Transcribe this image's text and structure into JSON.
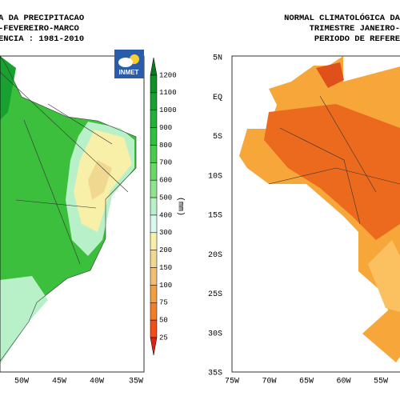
{
  "left_map": {
    "title_lines": [
      "A DA PRECIPITACAO",
      "-FEVEREIRO-MARCO",
      "ENCIA : 1981-2010"
    ],
    "logo": "INMET",
    "x_labels": [
      "50W",
      "45W",
      "40W",
      "35W"
    ],
    "colorbar": {
      "labels": [
        "1200",
        "1100",
        "1000",
        "900",
        "800",
        "700",
        "600",
        "500",
        "400",
        "300",
        "200",
        "150",
        "100",
        "75",
        "50",
        "25"
      ],
      "unit": "(mm)",
      "colors": [
        "#0a7a1e",
        "#109028",
        "#18a030",
        "#22b038",
        "#30c040",
        "#48cc50",
        "#68d868",
        "#90e490",
        "#b8f0c8",
        "#d8f8f0",
        "#f8f0a8",
        "#f0d890",
        "#f0c070",
        "#f0a040",
        "#f08028",
        "#f05018",
        "#e02010"
      ]
    }
  },
  "right_map": {
    "title_lines": [
      "NORMAL CLIMATOLÓGICA DA",
      "TRIMESTRE JANEIRO-",
      "PERIODO DE REFERE"
    ],
    "y_labels": [
      "5N",
      "EQ",
      "5S",
      "10S",
      "15S",
      "20S",
      "25S",
      "30S",
      "35S"
    ],
    "x_labels": [
      "75W",
      "70W",
      "65W",
      "60W",
      "55W"
    ]
  }
}
